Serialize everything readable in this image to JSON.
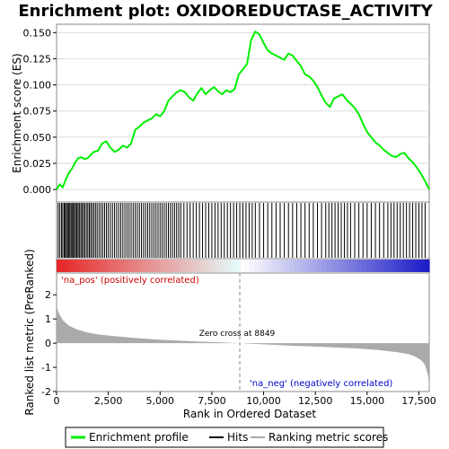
{
  "chart_data": {
    "type": "line",
    "title": "Enrichment plot: OXIDOREDUCTASE_ACTIVITY",
    "panels": {
      "es": {
        "ylabel": "Enrichment score (ES)",
        "ylim": [
          -0.012,
          0.158
        ],
        "yticks": [
          0.0,
          0.025,
          0.05,
          0.075,
          0.1,
          0.125,
          0.15
        ],
        "ytick_labels": [
          "0.000",
          "0.025",
          "0.050",
          "0.075",
          "0.100",
          "0.125",
          "0.150"
        ],
        "series": [
          {
            "name": "Enrichment profile",
            "color": "#00ee00",
            "x": [
              0,
              150,
              300,
              450,
              600,
              750,
              900,
              1050,
              1200,
              1350,
              1500,
              1650,
              1800,
              2000,
              2200,
              2400,
              2600,
              2800,
              3000,
              3200,
              3400,
              3600,
              3800,
              4000,
              4200,
              4400,
              4600,
              4800,
              5000,
              5200,
              5400,
              5600,
              5800,
              6000,
              6200,
              6400,
              6600,
              6800,
              7000,
              7200,
              7400,
              7600,
              7800,
              8000,
              8200,
              8400,
              8600,
              8800,
              9000,
              9200,
              9400,
              9600,
              9800,
              10000,
              10200,
              10400,
              10600,
              10800,
              11000,
              11200,
              11400,
              11600,
              11800,
              12000,
              12200,
              12400,
              12600,
              12800,
              13000,
              13200,
              13400,
              13600,
              13800,
              14000,
              14200,
              14400,
              14600,
              14800,
              15000,
              15200,
              15400,
              15600,
              15800,
              16000,
              16200,
              16400,
              16600,
              16800,
              17000,
              17200,
              17400,
              17600,
              17800,
              18000
            ],
            "y": [
              0.0,
              0.005,
              0.002,
              0.01,
              0.016,
              0.02,
              0.026,
              0.03,
              0.031,
              0.029,
              0.03,
              0.033,
              0.036,
              0.037,
              0.044,
              0.046,
              0.04,
              0.036,
              0.038,
              0.042,
              0.04,
              0.044,
              0.057,
              0.06,
              0.064,
              0.066,
              0.068,
              0.072,
              0.07,
              0.075,
              0.085,
              0.089,
              0.093,
              0.095,
              0.093,
              0.088,
              0.085,
              0.092,
              0.097,
              0.091,
              0.095,
              0.098,
              0.094,
              0.091,
              0.095,
              0.093,
              0.096,
              0.11,
              0.115,
              0.12,
              0.143,
              0.151,
              0.148,
              0.14,
              0.133,
              0.13,
              0.128,
              0.126,
              0.124,
              0.13,
              0.128,
              0.123,
              0.118,
              0.11,
              0.108,
              0.104,
              0.098,
              0.09,
              0.083,
              0.079,
              0.087,
              0.089,
              0.091,
              0.086,
              0.082,
              0.078,
              0.072,
              0.063,
              0.055,
              0.05,
              0.045,
              0.042,
              0.038,
              0.035,
              0.032,
              0.031,
              0.034,
              0.035,
              0.03,
              0.026,
              0.021,
              0.015,
              0.008,
              0.0
            ]
          }
        ],
        "baseline": 0.0
      },
      "hits": {
        "label": "Hits",
        "positions": [
          80,
          160,
          240,
          300,
          370,
          420,
          480,
          530,
          590,
          640,
          700,
          750,
          810,
          860,
          920,
          980,
          1040,
          1100,
          1170,
          1230,
          1300,
          1360,
          1440,
          1510,
          1580,
          1650,
          1720,
          1800,
          1880,
          1960,
          2050,
          2140,
          2230,
          2320,
          2410,
          2500,
          2600,
          2700,
          2800,
          2900,
          3000,
          3100,
          3200,
          3300,
          3400,
          3500,
          3600,
          3700,
          3800,
          3900,
          4000,
          4100,
          4200,
          4300,
          4400,
          4500,
          4600,
          4700,
          4800,
          4900,
          5000,
          5100,
          5200,
          5300,
          5400,
          5500,
          5600,
          5700,
          5800,
          5900,
          6000,
          6150,
          6300,
          6450,
          6600,
          6750,
          6900,
          7050,
          7200,
          7350,
          7500,
          7650,
          7800,
          7950,
          8100,
          8250,
          8400,
          8550,
          8700,
          8850,
          9000,
          9150,
          9300,
          9450,
          9600,
          9800,
          10000,
          10200,
          10400,
          10600,
          10800,
          11000,
          11200,
          11400,
          11600,
          11800,
          12000,
          12200,
          12400,
          12600,
          12800,
          13000,
          13150,
          13300,
          13450,
          13600,
          13750,
          13900,
          14050,
          14200,
          14400,
          14600,
          14800,
          15000,
          15200,
          15400,
          15600,
          15800,
          16000,
          16150,
          16300,
          16450,
          16600,
          16750,
          16900,
          17050,
          17200,
          17350,
          17500,
          17650,
          17800
        ]
      },
      "ranked_metric": {
        "ylabel": "Ranked list metric (PreRanked)",
        "ylim": [
          -2.0,
          2.9
        ],
        "yticks": [
          -2,
          -1,
          0,
          1,
          2
        ],
        "ytick_labels": [
          "-2",
          "-1",
          "0",
          "1",
          "2"
        ],
        "x": [
          0,
          100,
          300,
          600,
          1000,
          1500,
          2000,
          3000,
          4000,
          5000,
          6000,
          7000,
          8000,
          8849,
          9500,
          10500,
          11500,
          12500,
          13500,
          14500,
          15500,
          16000,
          16500,
          17000,
          17300,
          17600,
          17800,
          17950,
          18000
        ],
        "y": [
          1.55,
          1.25,
          0.95,
          0.72,
          0.56,
          0.44,
          0.36,
          0.27,
          0.2,
          0.14,
          0.1,
          0.06,
          0.03,
          0.0,
          -0.03,
          -0.07,
          -0.11,
          -0.14,
          -0.18,
          -0.22,
          -0.28,
          -0.33,
          -0.38,
          -0.45,
          -0.55,
          -0.7,
          -0.9,
          -1.35,
          -1.95
        ],
        "zero_cross": 8849,
        "zero_cross_label": "Zero cross at 8849",
        "pos_label": "'na_pos' (positively correlated)",
        "neg_label": "'na_neg' (negatively correlated)"
      }
    },
    "xlabel": "Rank in Ordered Dataset",
    "xlim": [
      0,
      18000
    ],
    "xticks": [
      0,
      2500,
      5000,
      7500,
      10000,
      12500,
      15000,
      17500
    ],
    "xtick_labels": [
      "0",
      "2,500",
      "5,000",
      "7,500",
      "10,000",
      "12,500",
      "15,000",
      "17,500"
    ],
    "legend": {
      "placement": "bottom",
      "entries": [
        {
          "label": "Enrichment profile",
          "color": "#00ee00"
        },
        {
          "label": "Hits",
          "color": "#000000"
        },
        {
          "label": "Ranking metric scores",
          "color": "#aaaaaa"
        }
      ]
    },
    "colors": {
      "pos_text": "#cc0000",
      "neg_text": "#0000cc",
      "metric_fill": "#aaaaaa",
      "grid_line": "#dddddd"
    }
  }
}
